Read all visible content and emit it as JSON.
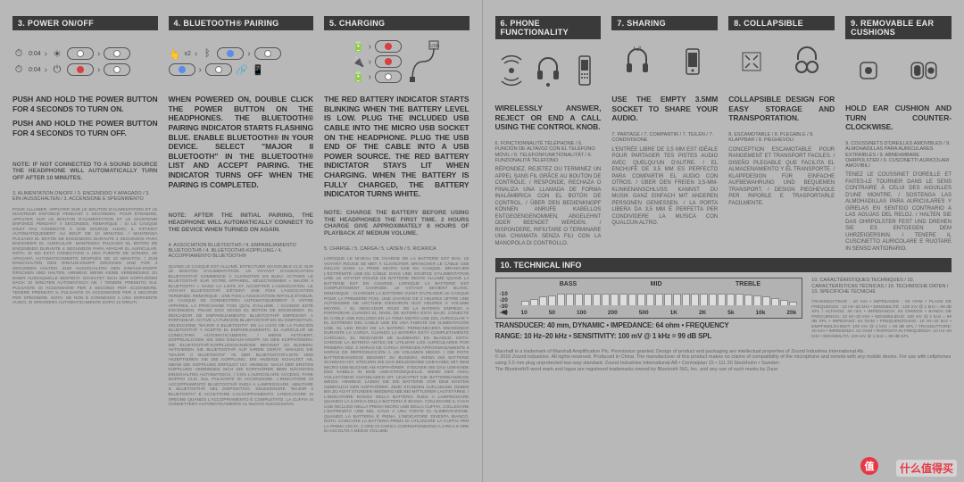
{
  "sections": {
    "s3": {
      "header": "3. POWER ON/OFF",
      "main1": "PUSH AND HOLD THE POWER BUTTON FOR 4 SECONDS TO TURN ON.",
      "main2": "PUSH AND HOLD THE POWER BUTTON FOR 4 SECONDS TO TURN OFF.",
      "note": "NOTE: IF NOT CONNECTED TO A SOUND SOURCE THE HEADPHONE WILL AUTOMATICALLY TURN OFF AFTER 10 MINUTES.",
      "trans": "3. ALIMENTATION ON/OFF / 3. ENCENDIDO Y APAGADO / 3. EIN-/AUSSCHALTEN / 3. ACCENSIONE E SPEGNIMENTO",
      "fine": "POUR ALLUMER, APPUYER SUR LE BOUTON D'ALIMENTATION ET LE MAINTENIR ENFONCÉ PENDANT 4 SECONDES. POUR ÉTEINDRE, APPUYER SUR LE BOUTON D'ALIMENTATION ET LE MAINTENIR ENFONCÉ PENDANT 4 SECONDES. REMARQUE : SI LE CASQUE N'EST PAS CONNECTÉ À UNE SOURCE AUDIO, IL S'ÉTEINT AUTOMATIQUEMENT AU BOUT DE 10 MINUTES. / MANTENGA PULSADO EL BOTÓN DE ENCENDIDO DURANTE 4 SEGUNDOS PARA ENCENDER EL AURICULAR. MANTENGA PULSADO EL BOTÓN DE ENCENDIDO DURANTE 4 SEGUNDOS PARA APAGAR EL AURICULAR. NOTA: SI NO ESTÁ CONECTADO A UNA FUENTE DE SONIDO, SE APAGARÁ AUTOMATICAMENTE DESPUÉS DE 10 MINUTOS. / ZUM EINSCHALTEN DEN EIN/AUS-KNOPF DRÜCKEN UND FÜR 4 SEKUNDEN HALTEN. ZUM AUSSCHALTEN DEN EIN/AUS-KNOPF DRÜCKEN UND HALTEN. HINWEIS: WENN KEINE VERBINDUNG ZU EINER AUDIOQUELLE BESTEHT, SCHALTET SICH DER KOPFHÖRER NACH 10 MINUTEN AUTOMATISCH AB. / TENERE PREMUTO SUL PULSANTE DI ACCENSIONE PER 4 SECONDI PER ACCENDERE. TENERE PREMUTO IL PULSANTE DI ACCENSIONE PER 4 SECONDI PER SPEGNERE. NOTA: SE NON È CONNESSO A UNA SORGENTE AUDIO, SI SPEGNERÀ AUTOMATICAMENTE DOPO 10 MINUTI."
    },
    "s4": {
      "header": "4. BLUETOOTH® PAIRING",
      "main": "WHEN POWERED ON, DOUBLE CLICK THE POWER BUTTON ON THE HEADPHONES. THE BLUETOOTH® PAIRING INDICATOR STARTS FLASHING BLUE. ENABLE BLUETOOTH® IN YOUR DEVICE. SELECT \"MAJOR II BLUETOOTH\" IN THE BLUETOOTH® LIST AND ACCEPT PAIRING. THE INDICATOR TURNS OFF WHEN THE PAIRING IS COMPLETED.",
      "note": "NOTE: AFTER THE INITIAL PAIRING, THE HEADPHONE WILL AUTOMATICALLY CONNECT TO THE DEVICE WHEN TURNED ON AGAIN.",
      "trans": "4. ASSOCIATION BLUETOOTH® / 4. EMPAREJAMIENTO BLUETOOTH® / 4. BLUETOOTH®-KOPPLUNG / 4. ACCOPPIAMENTO BLUETOOTH®",
      "fine": "QUAND LE CASQUE EST ALLUMÉ, EFFECTUER UN DOUBLE-CLIC SUR LE BOUTON D'ALIMENTATION. LE VOYANT D'ASSOCIATION BLUETOOTH® COMMENCE À CLIGNOTER EN BLEU. ACTIVER LE BLUETOOTH® SUR VOTRE APPAREIL. SÉLECTIONNER « MAJOR II BLUETOOTH » DANS LA LISTE ET ACCEPTER L'ASSOCIATION. LE VOYANT BLUETOOTH® S'ÉTEINT UNE FOIS L'ASSOCIATION TERMINÉE. REMARQUE : UNE FOIS L'ASSOCIATION INITIALE ÉTABLIE, LE CASQUE SE CONNECTERA AUTOMATIQUEMENT À VOTRE APPAREIL LA PROCHAINE FOIS QU'IL S'ALLUME. / CUANDO ESTÉ ENCENDIDO, PULSE DOS VECES EL BOTÓN DE ENCENDIDO. EL INDICADOR DE EMPAREJAMIENTO BLUETOOTH® EMPEZARÁ A PARPADEAR. ACTIVE LA FUNCIÓN BLUETOOTH® EN SU DISPOSITIVO. SELECCIONE \"MAJOR II BLUETOOTH\" EN LA LISTA DE LA FUNCIÓN BLUETOOTH® Y ACEPTE EL EMPAREJAMIENTO. EL AURICULAR SE CONECTARÁ AUTOMATICAMENTE. / WENN AKTIVIERT, DOPPELKLICKEN SIE DEN EIN/AUS-KNOPF AN DEN KOPFHÖRERN. DIE BLUETOOTH®-KOPPLUNGSANZEIGE BEGINNT ZU BLINKEN. AKTIVIEREN SIE BLUETOOTH® AUF IHREM GERÄT. WÄHLEN SIE \"MAJOR II BLUETOOTH\" IN DER BLUETOOTH®-LISTE UND AKZEPTIEREN SIE DIE KOPPLUNG. DIE ANZEIGE SCHALTET AB, WENN DIE KOPPLUNG ERFOLGT IST. HINWEIS: NACH DER ERSTEN KOPPLUNG VERBINDEN SICH DIE KOPFHÖRER BEIM NÄCHSTEN EINSCHALTEN AUTOMATISCH. / CON L'AURICOLARE ACCESO, FARE DOPPIO CLIC SUL PULSANTE DI ACCENSIONE. L'INDICATORE DI ACCOPPIAMENTO BLUETOOTH® INIZIA A LAMPEGGIARE. ABILITARE IL BLUETOOTH® NEL DISPOSITIVO. SELEZIONARE \"MAJOR II BLUETOOTH\" E ACCETTARE L'ACCOPPIAMENTO. L'INDICATORE SI SPEGNE QUANDO L'ACCOPPIAMENTO È COMPLETATO. LA CUFFIA SI CONNETTERÀ AUTOMATICAMENTE AL NUOVO SUCCESSIVO."
    },
    "s5": {
      "header": "5. CHARGING",
      "main": "THE RED BATTERY INDICATOR STARTS BLINKING WHEN THE BATTERY LEVEL IS LOW. PLUG THE INCLUDED USB CABLE INTO THE MICRO USB SOCKET ON THE HEADPHONE. PLUG THE USB END OF THE CABLE INTO A USB POWER SOURCE. THE RED BATTERY INDICTATOR STAYS LIT WHEN CHARGING. WHEN THE BATTERY IS FULLY CHARGED, THE BATTERY INDICATOR TURNS WHITE.",
      "note": "NOTE: CHARGE THE BATTERY BEFORE USING THE HEADPHONES THE FIRST TIME. 2 HOURS CHARGE GIVE APPROXIMATELY 8 HOURS OF PLAYBACK AT MEDIUM VOLUME.",
      "trans": "5. CHARGE / 5. CARGA / 5. LADEN / 5. RICARICA",
      "fine": "LORSQUE LE NIVEAU DE CHARGE DE LA BATTERIE EST BAS, LE VOYANT ROUGE SE MET À CLIGNOTER. BRANCHER LE CÂBLE USB INCLUS DANS LA PRISE MICRO USB DU CASQUE. BRANCHER L'EXTRÉMITÉ USB DU CÂBLE DANS UNE SOURCE D'ALIMENTATION USB. LE VOYANT ROUGE DE BATTERIE RESTE ALLUMÉ QUAND LA BATTERIE EST EN CHARGE. LORSQUE LA BATTERIE EST COMPLÈTEMENT CHARGÉE, LE VOYANT DEVIENT BLANC. REMARQUE : CHARGER LA BATTERIE AVANT D'UTILISER LE CASQUE POUR LA PREMIÈRE FOIS. UNE CHARGE DE 2 HEURES OFFRE UNE AUTONOMIE DE LECTURE D'ENVIRON HUIT HEURES À VOLUME MOYEN. / EL INDICADOR ROJO DE LA BATERÍA EMPIEZA A PARPADEAR CUANDO EL NIVEL DE BATERÍA ESTÁ BAJO. CONECTE EL CABLE USB INCLUIDO EN LA TOMA MICRO USB DEL AURICULAR Y EL EXTREMO DEL CABLE USB EN UNA FUENTE DE ALIMENTACIÓN USB. EL LED ROJO DE LA BATERÍA PERMANECERÁ ENCENDIDO DURANTE LA CARGA. CUANDO LA BATERÍA ESTÁ COMPLETAMENTE CARGADA, EL INDICADOR SE ILUMINARÁ EN BLANCO. NOTA: CARGUE LA BATERÍA ANTES DE UTILIZAR LOS AURICULARES POR PRIMERA VEZ. 2 HORAS DE CARGA OFRECEN APROXIMADAMENTE 8 HORAS DE REPRODUCCIÓN A UN VOLUMEN MEDIO. / DIE ROTE BATTERIEANZEIGE BEGINNT ZU BLINKEN, WENN DIE BATTERIE SCHWACH IST. STECKEN SIE DAS BEILIEGENDE USB-KABEL MIT DEM MICRO-USB-BUCHSE AM KOPFHÖRER. STECKEN SIE DAS USB-ENDE DES KABELS IN EINE USB-STROMQUELLE. WENN DER AKKU VOLLSTÄNDIG AUFGELADEN IST, LEUCHTET DIE BATTERIEANZEIGE WEISS. HINWEIS: LADEN SIE DIE BATTERIE VOR DEM ERSTEN GEBRAUCH DER KOPFHÖRER. ZWEI STUNDEN AUFLADUNG GEBEN BIS ZU ACHT STUNDEN WIEDERGABE BEI MITTLERER LAUTSTÄRKE. / L'INDICATORE ROSSO DELLA BATTERIA INIZIA A LAMPEGGIARE QUANDO LA CARICA DELLA BATTERIA È BASSA. COLLEGARE IL CAVO USB INCLUSO NELLA PRESA MICRO USB DELLA CUFFIA. COLLEGARE L'ESTREMITÀ USB DEL CAVO A UNA FONTE DI ALIMENTAZIONE. QUANDO LA BATTERIA È PIENA, L'INDICATORE DIVENTA BIANCO. NOTA: CARICARE LA BATTERIA PRIMA DI UTILIZZARE LA CUFFIA PER LA PRIMA VOLTA. 2 ORE DI CARICA CORRISPONDONO A CIRCA 8 ORE DI ASCOLTO A MEDIO VOLUME."
    },
    "s6": {
      "header": "6. PHONE FUNCTIONALITY",
      "main": "WIRELESSLY ANSWER, REJECT OR END A CALL USING THE CONTROL KNOB.",
      "trans": "6. FONCTIONNALITÉ TÉLÉPHONE / 6. FUNCIÓN DE ALTAVOZ CON EL TELÉFONO MÓVIL / 6. TELEFONFUNKTIONALITÄT / 6. FUNZIONALITÀ TELEFONO",
      "second": "RÉPONDEZ, REJETEZ OU TERMINEZ UN APPEL SANS FIL GRÂCE AU BOUTON DE CONTRÔLE. / RESPONDE, RECHAZA O FINALIZA UNA LLAMADA DE FORMA INALÁMBRICA CON EL BOTÓN DE CONTROL. / ÜBER DEN BEDIENKNOPF KÖNNEN ANRUFE KABELLOS ENTGEGENGENOMMEN, ABGELEHNT ODER BEENDET WERDEN. / RISPONDERE, RIFIUTARE O TERMINARE UNA CHIAMATA SENZA FILI CON LA MANOPOLA DI CONTROLLO."
    },
    "s7": {
      "header": "7. SHARING",
      "main": "USE THE EMPTY 3.5MM SOCKET TO SHARE YOUR AUDIO.",
      "trans": "7. PARTAGE / 7. COMPARTIR / 7. TEILEN / 7. CONDIVISIONE",
      "second": "L'ENTRÉE LIBRE DE 3,5 MM EST IDÉALE POUR PARTAGER TES PISTES AUDIO AVEC QUELQU'UN D'AUTRE. / EL ENCHUFE DE 3,5 MM ES PERFECTO PARA COMPARTIR EL AUDIO CON OTROS. / ÜBER DEN FREIEN 3,5-MM-KLINKENANSCHLUSS KANNST DU MUSIK GANZ EINFACH MIT ANDEREN PERSONEN GENIESSEN. / LA PORTA LIBERA DA 3,5 MM È PERFETTA PER CONDIVIDERE LA MUSICA CON QUALCUN ALTRO."
    },
    "s8": {
      "header": "8. COLLAPSIBLE",
      "main": "COLLAPSIBLE DESIGN FOR EASY STORAGE AND TRANSPORTATION.",
      "trans": "8. ESCAMOTABLE / 8. PLEGABLE / 8. KLAPPBAR / 8. PIEGHEVOLI",
      "second": "CONCEPTION ESCAMOTABLE POUR RANGEMENT ET TRANSPORT FACILES. / DISEÑO PLEGABLE QUE FACILITA EL ALMACENAMIENTO Y EL TRANSPORTE. / KLAPPDESIGN FÜR EINFACHE AUFBEWAHRUNG UND BEQUEMEN TRANSPORT. / DESIGN PIEGHEVOLE PER RIPORLE E TRASPORTARLE FACILMENTE."
    },
    "s9": {
      "header": "9. REMOVABLE EAR CUSHIONS",
      "main": "HOLD EAR CUSHION AND TURN COUNTER-CLOCKWISE.",
      "trans": "9. COUSSINETS D'OREILLES AMOVIBLES / 9. ALMOHADILLAS PARA AURICULARES EXTRAÍBLES / 9. ABNEHMBARE OHRPOLSTER / 9. CUSCINETTI AURICOLARI AMOVIBILI",
      "second": "TENEZ LE COUSSINET D'OREILLE ET FAITES-LE TOURNER DANS LE SENS CONTRAIRE À CELUI DES AIGUILLES D'UNE MONTRE. / SOSTENGA LAS ALMOHADILLAS PARA AURICULARES Y GÍRELAS EN SENTIDO CONTRARIO A LAS AGUJAS DEL RELOJ. / HALTEN SIE DAS OHRPOLSTER FEST UND DREHEN SIE ES ENTGEGEN DEM UHRZEIGERSINN. / TENERE IL CUSCINETTO AURICOLARE E RUOTARE IN SENSO ANTIORARIO."
    }
  },
  "tech": {
    "header": "10. TECHNICAL INFO",
    "bands": {
      "bass": "BASS",
      "mid": "MID",
      "treble": "TREBLE"
    },
    "y_ticks": [
      "-10",
      "-20",
      "-30",
      "-40"
    ],
    "x_ticks": [
      "10",
      "50",
      "100",
      "200",
      "500",
      "1K",
      "2K",
      "5k",
      "10k",
      "20k"
    ],
    "bar_heights_pct": [
      32,
      45,
      62,
      72,
      80,
      82,
      84,
      85,
      85,
      85,
      85,
      85,
      85,
      85,
      85,
      84,
      84,
      85,
      85,
      85,
      85,
      85,
      84,
      83,
      80,
      76,
      70,
      62,
      50,
      38,
      26
    ],
    "spec1": "TRANSDUCER: 40 mm, DYNAMIC • IMPEDANCE: 64 ohm • FREQUENCY",
    "spec2": "RANGE: 10 Hz–20 kHz • SENSITIVITY: 100 mV @ 1 kHz = 99 dB SPL",
    "side_trans": "10. CARACTÉRISTIQUES TECHNIQUES / 10. CARACTERÍSTICAS TÉCNICAS / 10. TECHNISCHE DATEN / 10. SPECIFICHE TECNICHE",
    "side_fine": "TRANSDUCTEUR : 40 mm • IMPÉDANCE : 64 OHM • PLAGE DE FRÉQUENCE : 10 Hz–20 kHz • SENSIBILITÉ : 100 mV @ 1 kHz = 99 dB SPL / ALTAVOZ: 40 mm • IMPEDANCIA: 64 OHMIOS • BANDA DE FRECUENCIA: 10 Hz–20 kHz • SENSIBILIDAD: 100 mV @ 1 kHz = 99 dB SPL • IMPEDANZ: 64 OHM • FREQUENZGANG: 10 Hz–20 kHz • EMPFINDLICHKEIT: 100 mV @ 1 kHz = 99 dB SPL / TRASDUTTORE: 40 mm • IMPEDENZA: 64 OHM • RISPOSTA IN FREQUENZA: 10 Hz–20 kHz • SENSIBILITÀ: 100 mV @ 1 kHz = 99 dB SPL"
  },
  "legal": {
    "l1": "Marshall is a trademark of Marshall Amplification Plc. Permission granted. Design of product and packaging are intellectual properties of Zound Industries International Ab.",
    "l2": "© 2016 Zound Industries. All rights reserved. Produced in China. The manufacturer of this product makes no claims of compatibility of the microphone and remote with any mobile device. For use with cellphones using 3.5 mm plug unprotected two-way standard. Zound Industries International AB • Centralplan 15 • 111 20 Stockholm • Sweden",
    "l3": "The Bluetooth® word mark and logos are registered trademarks owned by Bluetooth SIG, Inc. and any use of such marks by Zoun"
  },
  "watermark": {
    "badge": "值",
    "text": "什么值得买"
  },
  "colors": {
    "bg": "#b8b8b8",
    "header_bg": "#3a3a3a",
    "header_fg": "#e8e8e8",
    "text": "#333333",
    "muted": "#555555",
    "red": "#d84040",
    "blue": "#5a8de8",
    "white_dot": "#ffffff"
  }
}
